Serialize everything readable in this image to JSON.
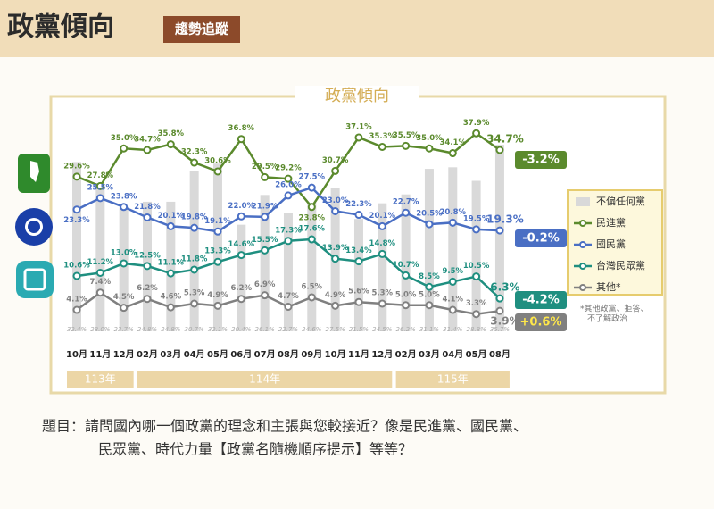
{
  "header": {
    "title": "政黨傾向",
    "tag": "趨勢追蹤"
  },
  "chart_data": {
    "type": "line",
    "title": "政黨傾向",
    "categories": [
      "10月",
      "11月",
      "12月",
      "02月",
      "03月",
      "04月",
      "05月",
      "06月",
      "07月",
      "08月",
      "09月",
      "10月",
      "11月",
      "12月",
      "02月",
      "03月",
      "04月",
      "05月",
      "08月"
    ],
    "year_groups": [
      {
        "label": "113年",
        "count": 3
      },
      {
        "label": "114年",
        "count": 11
      },
      {
        "label": "115年",
        "count": 5
      }
    ],
    "ylim": [
      0,
      40
    ],
    "bars": {
      "name": "不偏任何黨",
      "color": "#d9d9d9",
      "values": [
        32.4,
        28.0,
        23.7,
        24.8,
        24.8,
        30.7,
        32.1,
        20.4,
        26.1,
        22.7,
        24.6,
        27.5,
        21.5,
        24.5,
        26.2,
        31.1,
        31.4,
        28.8,
        35.7
      ],
      "value_labels": [
        "32.4%",
        "28.0%",
        "23.7%",
        "24.8%",
        "24.8%",
        "30.7%",
        "32.1%",
        "20.4%",
        "26.1%",
        "22.7%",
        "24.6%",
        "27.5%",
        "21.5%",
        "24.5%",
        "26.2%",
        "31.1%",
        "31.4%",
        "28.8%",
        "35.7%"
      ]
    },
    "series": [
      {
        "name": "民進黨",
        "color": "#5b8a2d",
        "change": "-3.2%",
        "values": [
          29.6,
          27.8,
          35.0,
          34.7,
          35.8,
          32.3,
          30.6,
          36.8,
          29.5,
          29.2,
          23.8,
          30.7,
          37.1,
          35.3,
          35.5,
          35.0,
          34.1,
          37.9,
          34.7
        ],
        "value_labels": [
          "29.6%",
          "27.8%",
          "35.0%",
          "34.7%",
          "35.8%",
          "32.3%",
          "30.6%",
          "36.8%",
          "29.5%",
          "29.2%",
          "23.8%",
          "30.7%",
          "37.1%",
          "35.3%",
          "35.5%",
          "35.0%",
          "34.1%",
          "37.9%",
          "34.7%"
        ]
      },
      {
        "name": "國民黨",
        "color": "#4a6fc4",
        "change": "-0.2%",
        "values": [
          23.3,
          25.5,
          23.8,
          21.8,
          20.1,
          19.8,
          19.1,
          22.0,
          21.9,
          26.0,
          27.5,
          23.0,
          22.3,
          20.1,
          22.7,
          20.5,
          20.8,
          19.5,
          19.3
        ],
        "value_labels": [
          "23.3%",
          "25.5%",
          "23.8%",
          "21.8%",
          "20.1%",
          "19.8%",
          "19.1%",
          "22.0%",
          "21.9%",
          "26.0%",
          "27.5%",
          "23.0%",
          "22.3%",
          "20.1%",
          "22.7%",
          "20.5%",
          "20.8%",
          "19.5%",
          "19.3%"
        ]
      },
      {
        "name": "台灣民眾黨",
        "color": "#1f8f80",
        "change": "-4.2%",
        "values": [
          10.6,
          11.2,
          13.0,
          12.5,
          11.1,
          11.8,
          13.3,
          14.6,
          15.5,
          17.3,
          17.6,
          13.9,
          13.4,
          14.8,
          10.7,
          8.5,
          9.5,
          10.5,
          6.3
        ],
        "value_labels": [
          "10.6%",
          "11.2%",
          "13.0%",
          "12.5%",
          "11.1%",
          "11.8%",
          "13.3%",
          "14.6%",
          "15.5%",
          "17.3%",
          "17.6%",
          "13.9%",
          "13.4%",
          "14.8%",
          "10.7%",
          "8.5%",
          "9.5%",
          "10.5%",
          "6.3%"
        ]
      },
      {
        "name": "其他*",
        "color": "#808080",
        "change": "+0.6%",
        "values": [
          4.1,
          7.4,
          4.5,
          6.2,
          4.6,
          5.3,
          4.9,
          6.2,
          6.9,
          4.7,
          6.5,
          4.9,
          5.6,
          5.3,
          5.0,
          5.0,
          4.1,
          3.3,
          3.9
        ],
        "value_labels": [
          "4.1%",
          "7.4%",
          "4.5%",
          "6.2%",
          "4.6%",
          "5.3%",
          "4.9%",
          "6.2%",
          "6.9%",
          "4.7%",
          "6.5%",
          "4.9%",
          "5.6%",
          "5.3%",
          "5.0%",
          "5.0%",
          "4.1%",
          "3.3%",
          "3.9%"
        ]
      }
    ],
    "footnote": [
      "*其他政黨、拒答、",
      "不了解政治"
    ]
  },
  "question": [
    "題目：請問國內哪一個政黨的理念和主張與您較接近？像是民進黨、國民黨、",
    "民眾黨、時代力量【政黨名隨機順序提示】等等？"
  ]
}
